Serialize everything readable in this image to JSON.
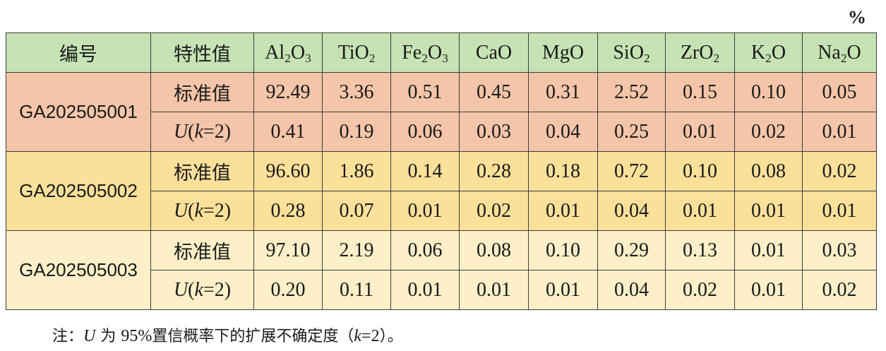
{
  "unit": "%",
  "table": {
    "headers": {
      "id": "编号",
      "property": "特性值",
      "components": [
        {
          "base": "Al",
          "sub1": "2",
          "mid": "O",
          "sub2": "3"
        },
        {
          "base": "TiO",
          "sub1": "2",
          "mid": "",
          "sub2": ""
        },
        {
          "base": "Fe",
          "sub1": "2",
          "mid": "O",
          "sub2": "3"
        },
        {
          "base": "CaO",
          "sub1": "",
          "mid": "",
          "sub2": ""
        },
        {
          "base": "MgO",
          "sub1": "",
          "mid": "",
          "sub2": ""
        },
        {
          "base": "SiO",
          "sub1": "2",
          "mid": "",
          "sub2": ""
        },
        {
          "base": "ZrO",
          "sub1": "2",
          "mid": "",
          "sub2": ""
        },
        {
          "base": "K",
          "sub1": "2",
          "mid": "O",
          "sub2": ""
        },
        {
          "base": "Na",
          "sub1": "2",
          "mid": "O",
          "sub2": ""
        }
      ]
    },
    "labels": {
      "standard": "标准值",
      "uncert_U": "U",
      "uncert_open": "(",
      "uncert_k": "k",
      "uncert_rest": "=2)"
    },
    "samples": [
      {
        "id": "GA202505001",
        "standard": [
          "92.49",
          "3.36",
          "0.51",
          "0.45",
          "0.31",
          "2.52",
          "0.15",
          "0.10",
          "0.05"
        ],
        "uncertainty": [
          "0.41",
          "0.19",
          "0.06",
          "0.03",
          "0.04",
          "0.25",
          "0.01",
          "0.02",
          "0.01"
        ]
      },
      {
        "id": "GA202505002",
        "standard": [
          "96.60",
          "1.86",
          "0.14",
          "0.28",
          "0.18",
          "0.72",
          "0.10",
          "0.08",
          "0.02"
        ],
        "uncertainty": [
          "0.28",
          "0.07",
          "0.01",
          "0.02",
          "0.01",
          "0.04",
          "0.01",
          "0.01",
          "0.01"
        ]
      },
      {
        "id": "GA202505003",
        "standard": [
          "97.10",
          "2.19",
          "0.06",
          "0.08",
          "0.10",
          "0.29",
          "0.13",
          "0.01",
          "0.03"
        ],
        "uncertainty": [
          "0.20",
          "0.11",
          "0.01",
          "0.01",
          "0.01",
          "0.04",
          "0.02",
          "0.01",
          "0.02"
        ]
      }
    ]
  },
  "note": {
    "prefix": "注：",
    "U": "U",
    "t1": " 为 ",
    "pct": "95%",
    "t2": "置信概率下的扩展不确定度（",
    "k": "k",
    "eq": "=2",
    "end": "）。"
  }
}
